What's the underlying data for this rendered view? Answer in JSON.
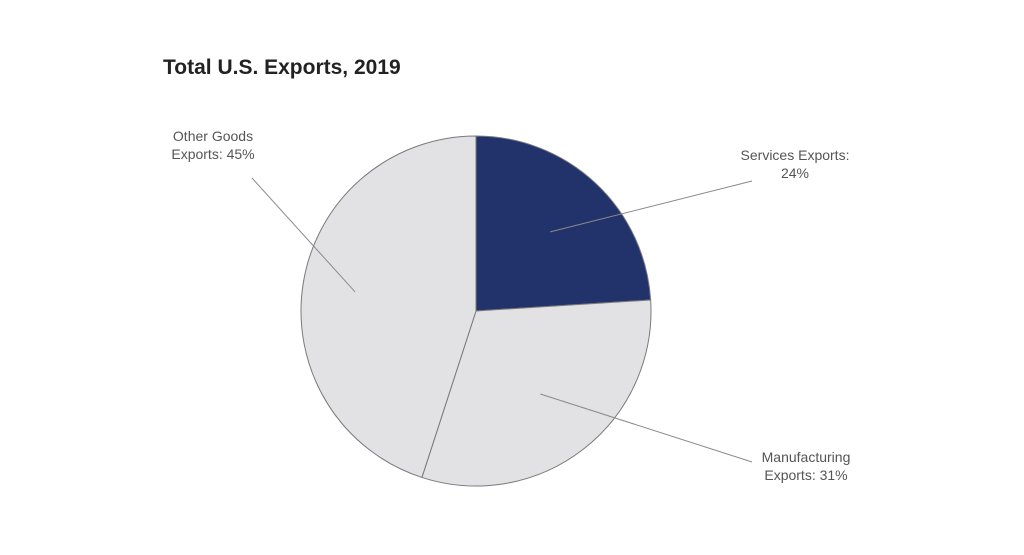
{
  "chart_data": {
    "type": "pie",
    "title": "Total U.S. Exports, 2019",
    "slices": [
      {
        "name": "Services Exports",
        "value": 24,
        "color": "#22326b",
        "label_lines": [
          "Services Exports:",
          "24%"
        ]
      },
      {
        "name": "Manufacturing Exports",
        "value": 31,
        "color": "#e2e2e4",
        "label_lines": [
          "Manufacturing",
          "Exports: 31%"
        ]
      },
      {
        "name": "Other Goods Exports",
        "value": 45,
        "color": "#e2e2e4",
        "label_lines": [
          "Other Goods",
          "Exports: 45%"
        ]
      }
    ],
    "legend": "none",
    "grid": false,
    "colors": {
      "outline": "#7a7a7a",
      "leader": "#8a8a8a"
    }
  }
}
